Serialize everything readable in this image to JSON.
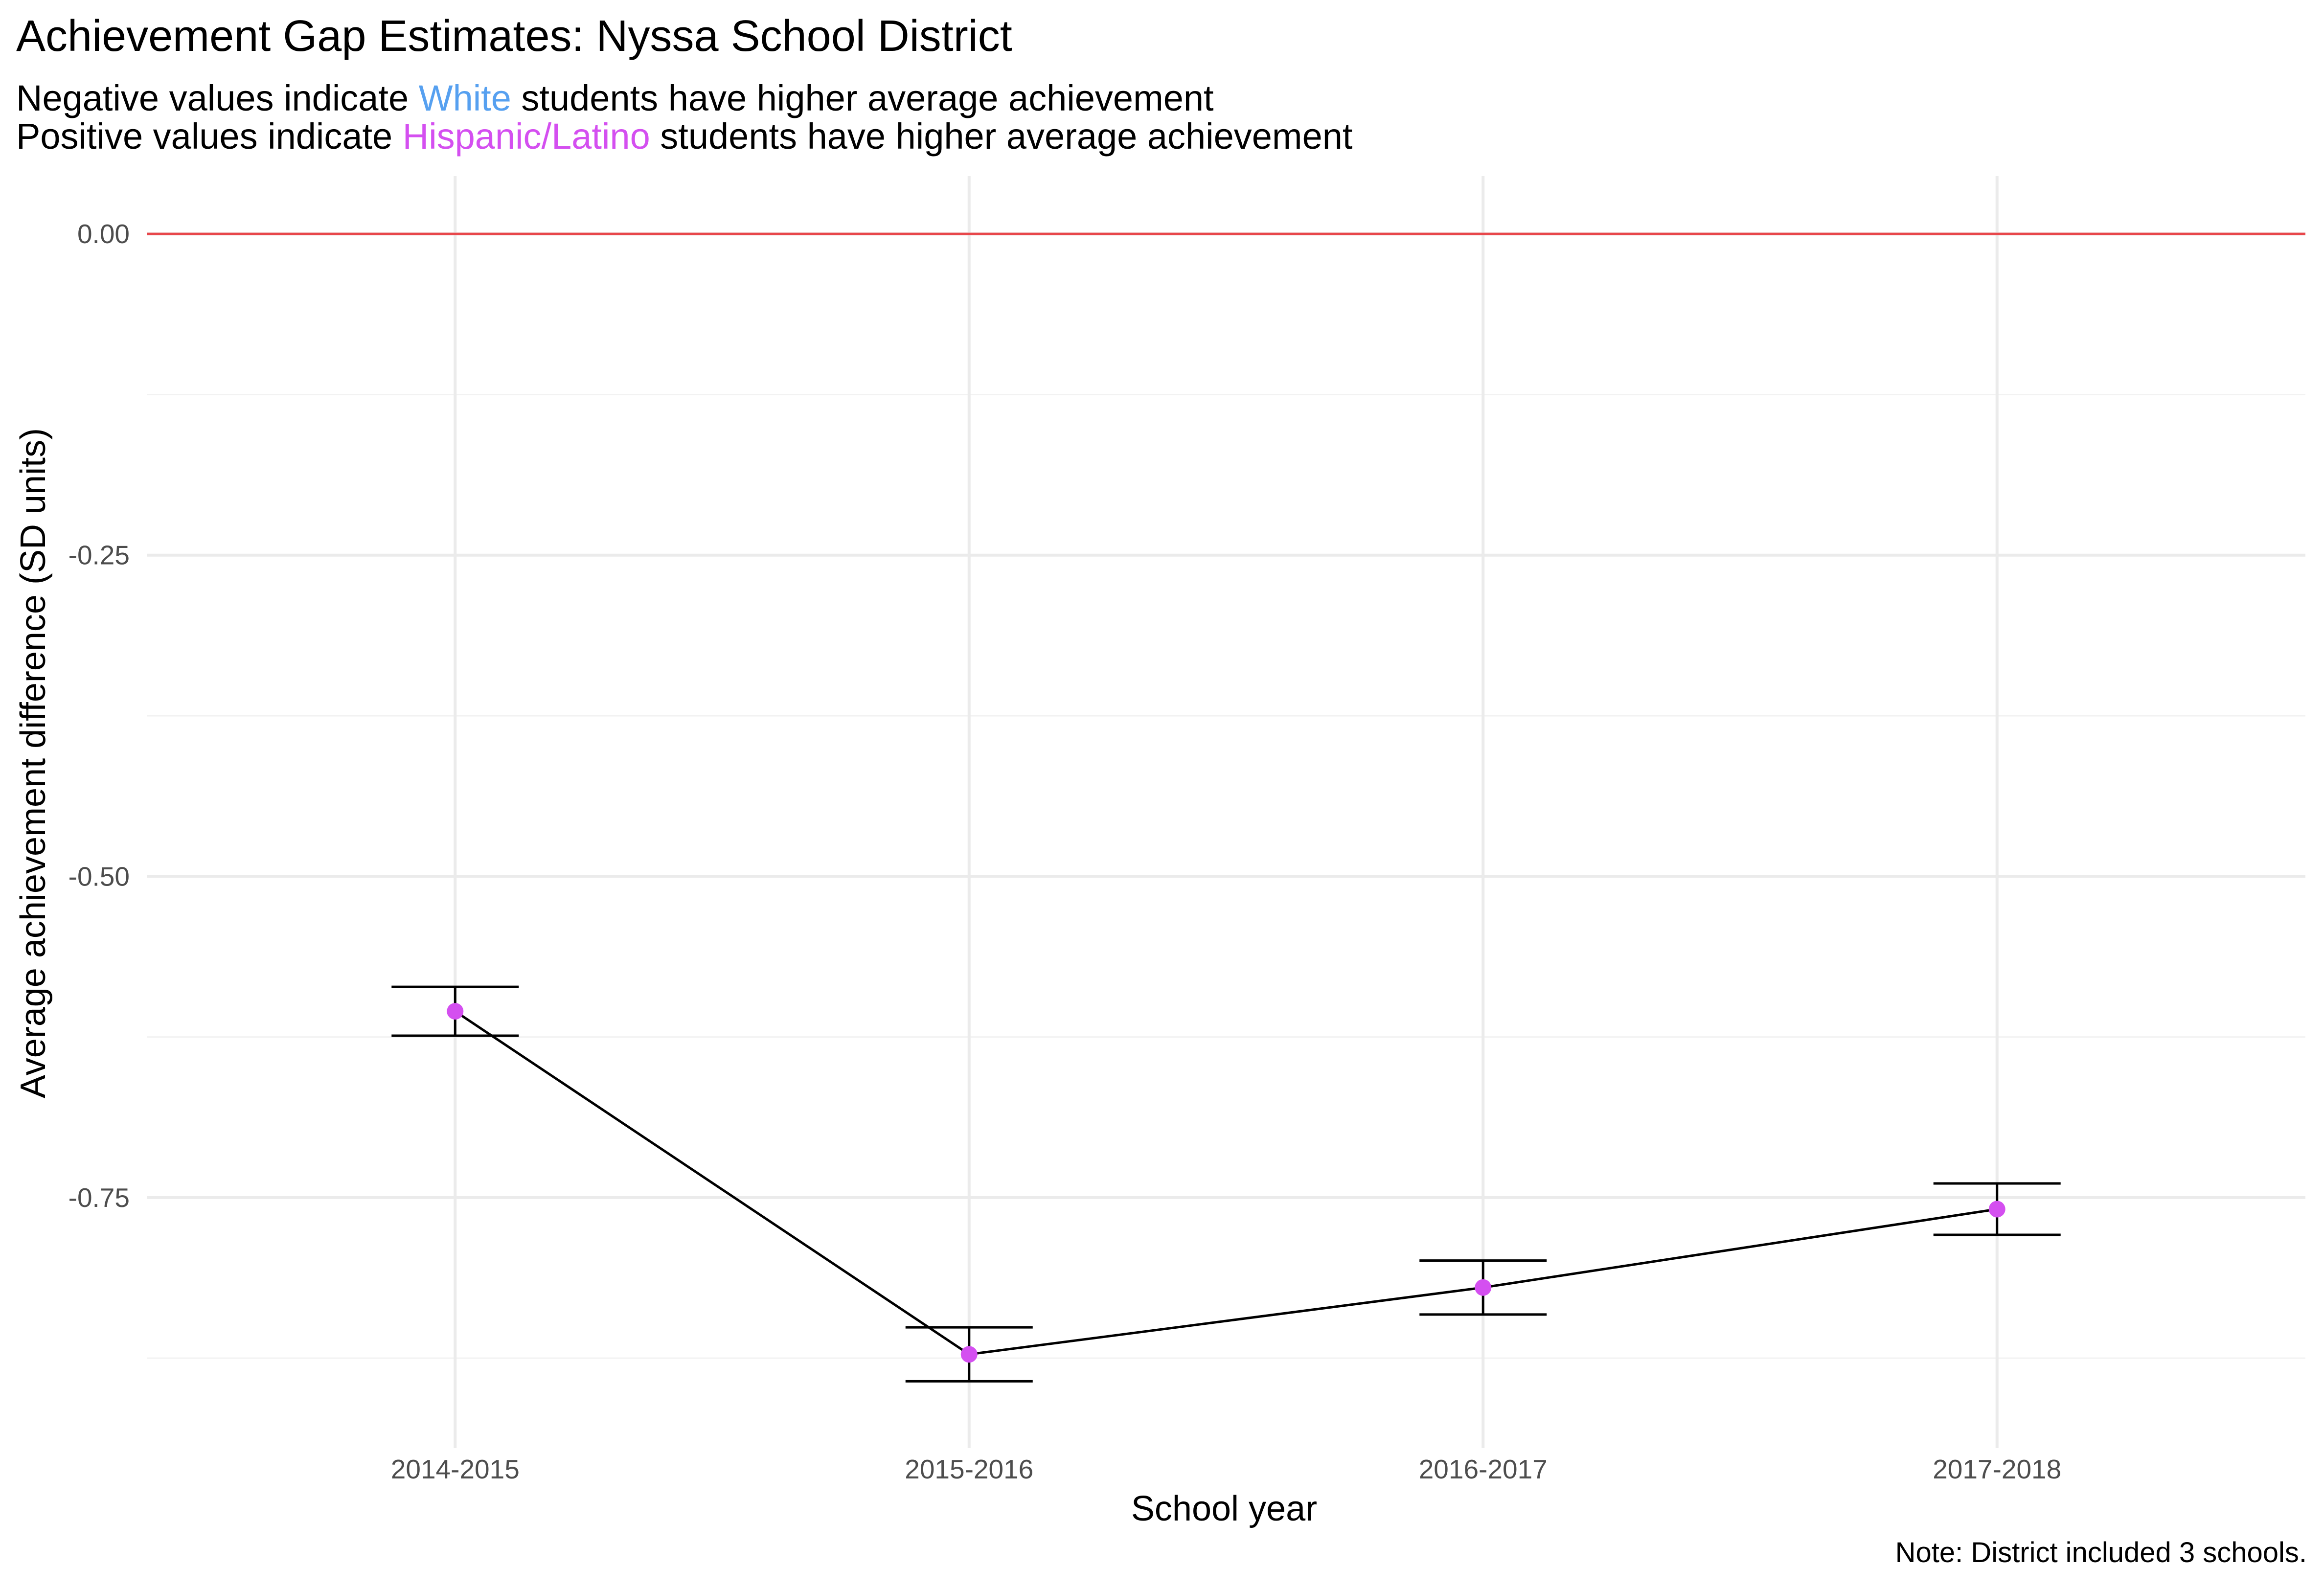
{
  "title": "Achievement Gap Estimates: Nyssa School District",
  "subtitle": {
    "line1": {
      "before": "Negative values indicate ",
      "highlight": "White",
      "after": " students have higher average achievement",
      "highlight_color": "#56a0f0"
    },
    "line2": {
      "before": "Positive values indicate ",
      "highlight": "Hispanic/Latino",
      "after": " students have higher average achievement",
      "highlight_color": "#d44ff0"
    }
  },
  "caption": "Note: District included 3 schools.",
  "chart_data": {
    "type": "line",
    "categories": [
      "2014-2015",
      "2015-2016",
      "2016-2017",
      "2017-2018"
    ],
    "series": [
      {
        "values": [
          -0.605,
          -0.872,
          -0.82,
          -0.759
        ],
        "lower": [
          -0.624,
          -0.893,
          -0.841,
          -0.779
        ],
        "upper": [
          -0.586,
          -0.851,
          -0.799,
          -0.739
        ],
        "point_color": "#d44ff0",
        "line_color": "#000000"
      }
    ],
    "reference_line": {
      "y": 0,
      "color": "#e8474b"
    },
    "xlabel": "School year",
    "ylabel": "Average achievement difference (SD units)",
    "yticks": [
      0.0,
      -0.25,
      -0.5,
      -0.75
    ],
    "ytick_labels": [
      "0.00",
      "-0.25",
      "-0.50",
      "-0.75"
    ],
    "ylim": [
      -0.945,
      0.045
    ],
    "grid": true
  }
}
